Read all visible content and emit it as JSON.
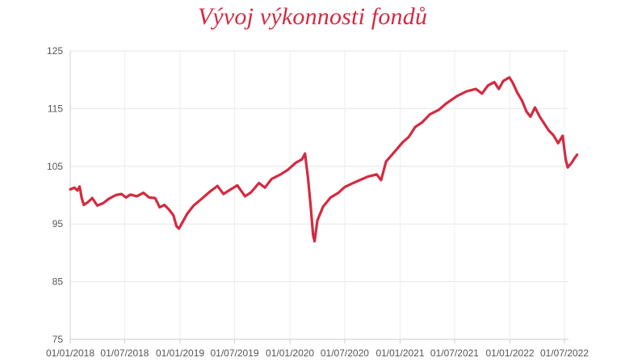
{
  "chart_data": {
    "type": "line",
    "title": "Vývoj výkonnosti fondů",
    "xlabel": "",
    "ylabel": "",
    "ylim": [
      75,
      125
    ],
    "y_ticks": [
      "75",
      "85",
      "95",
      "105",
      "115",
      "125"
    ],
    "x_ticks": [
      "01/01/2018",
      "01/07/2018",
      "01/01/2019",
      "01/07/2019",
      "01/01/2020",
      "01/07/2020",
      "01/01/2021",
      "01/07/2021",
      "01/01/2022",
      "01/07/2022"
    ],
    "grid": true,
    "line_color": "#d42a40",
    "series": [
      {
        "values": [
          [
            "2018-01-01",
            101.0
          ],
          [
            "2018-01-15",
            101.3
          ],
          [
            "2018-01-25",
            100.8
          ],
          [
            "2018-02-01",
            101.5
          ],
          [
            "2018-02-08",
            99.5
          ],
          [
            "2018-02-15",
            98.3
          ],
          [
            "2018-03-01",
            98.8
          ],
          [
            "2018-03-15",
            99.5
          ],
          [
            "2018-04-01",
            98.2
          ],
          [
            "2018-04-20",
            98.6
          ],
          [
            "2018-05-10",
            99.4
          ],
          [
            "2018-06-01",
            100.0
          ],
          [
            "2018-06-20",
            100.2
          ],
          [
            "2018-07-05",
            99.6
          ],
          [
            "2018-07-20",
            100.1
          ],
          [
            "2018-08-10",
            99.8
          ],
          [
            "2018-09-01",
            100.4
          ],
          [
            "2018-09-20",
            99.6
          ],
          [
            "2018-10-10",
            99.5
          ],
          [
            "2018-10-25",
            97.9
          ],
          [
            "2018-11-10",
            98.3
          ],
          [
            "2018-11-25",
            97.5
          ],
          [
            "2018-12-10",
            96.5
          ],
          [
            "2018-12-20",
            94.6
          ],
          [
            "2018-12-28",
            94.2
          ],
          [
            "2019-01-10",
            95.4
          ],
          [
            "2019-01-25",
            96.8
          ],
          [
            "2019-02-15",
            98.2
          ],
          [
            "2019-03-10",
            99.2
          ],
          [
            "2019-04-10",
            100.6
          ],
          [
            "2019-05-05",
            101.6
          ],
          [
            "2019-05-25",
            100.2
          ],
          [
            "2019-06-15",
            100.9
          ],
          [
            "2019-07-10",
            101.7
          ],
          [
            "2019-08-05",
            99.8
          ],
          [
            "2019-08-25",
            100.5
          ],
          [
            "2019-09-20",
            102.1
          ],
          [
            "2019-10-10",
            101.3
          ],
          [
            "2019-11-01",
            102.8
          ],
          [
            "2019-12-01",
            103.6
          ],
          [
            "2019-12-25",
            104.4
          ],
          [
            "2020-01-20",
            105.6
          ],
          [
            "2020-02-10",
            106.2
          ],
          [
            "2020-02-20",
            107.2
          ],
          [
            "2020-03-01",
            103.0
          ],
          [
            "2020-03-10",
            98.0
          ],
          [
            "2020-03-18",
            93.0
          ],
          [
            "2020-03-23",
            92.0
          ],
          [
            "2020-04-01",
            95.6
          ],
          [
            "2020-04-20",
            98.0
          ],
          [
            "2020-05-15",
            99.6
          ],
          [
            "2020-06-10",
            100.4
          ],
          [
            "2020-07-01",
            101.4
          ],
          [
            "2020-07-25",
            102.0
          ],
          [
            "2020-08-20",
            102.6
          ],
          [
            "2020-09-15",
            103.2
          ],
          [
            "2020-10-15",
            103.6
          ],
          [
            "2020-10-30",
            102.6
          ],
          [
            "2020-11-15",
            105.8
          ],
          [
            "2020-12-15",
            107.6
          ],
          [
            "2021-01-10",
            109.2
          ],
          [
            "2021-01-30",
            110.1
          ],
          [
            "2021-02-20",
            111.8
          ],
          [
            "2021-03-15",
            112.6
          ],
          [
            "2021-04-10",
            114.0
          ],
          [
            "2021-05-10",
            114.8
          ],
          [
            "2021-06-01",
            115.8
          ],
          [
            "2021-06-20",
            116.5
          ],
          [
            "2021-07-10",
            117.2
          ],
          [
            "2021-08-10",
            118.0
          ],
          [
            "2021-09-10",
            118.4
          ],
          [
            "2021-09-30",
            117.6
          ],
          [
            "2021-10-20",
            119.0
          ],
          [
            "2021-11-10",
            119.6
          ],
          [
            "2021-11-25",
            118.4
          ],
          [
            "2021-12-10",
            119.8
          ],
          [
            "2021-12-30",
            120.4
          ],
          [
            "2022-01-10",
            119.5
          ],
          [
            "2022-01-25",
            117.8
          ],
          [
            "2022-02-10",
            116.4
          ],
          [
            "2022-02-25",
            114.5
          ],
          [
            "2022-03-10",
            113.6
          ],
          [
            "2022-03-25",
            115.2
          ],
          [
            "2022-04-10",
            113.6
          ],
          [
            "2022-04-25",
            112.4
          ],
          [
            "2022-05-10",
            111.2
          ],
          [
            "2022-05-25",
            110.4
          ],
          [
            "2022-06-10",
            109.0
          ],
          [
            "2022-06-25",
            110.3
          ],
          [
            "2022-07-05",
            106.2
          ],
          [
            "2022-07-12",
            104.8
          ],
          [
            "2022-07-25",
            105.6
          ],
          [
            "2022-08-05",
            106.5
          ],
          [
            "2022-08-12",
            107.0
          ]
        ]
      }
    ]
  }
}
